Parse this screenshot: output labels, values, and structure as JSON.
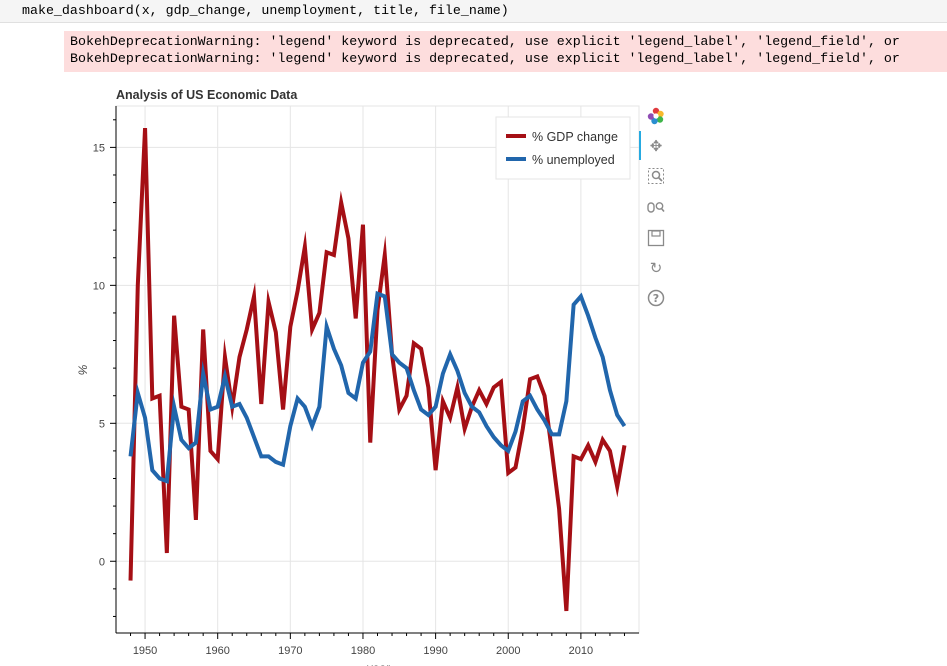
{
  "code": {
    "line": "make_dashboard(x, gdp_change, unemployment, title, file_name)"
  },
  "warnings": [
    "BokehDeprecationWarning: 'legend' keyword is deprecated, use explicit 'legend_label', 'legend_field', or",
    "BokehDeprecationWarning: 'legend' keyword is deprecated, use explicit 'legend_label', 'legend_field', or"
  ],
  "toolbar": {
    "items": [
      "bokeh-logo-icon",
      "pan-icon",
      "box-zoom-icon",
      "wheel-zoom-icon",
      "save-icon",
      "reset-icon",
      "help-icon"
    ]
  },
  "chart_data": {
    "type": "line",
    "title": "Analysis of US Economic Data",
    "xlabel": "year",
    "ylabel": "%",
    "xlim": [
      1946,
      2018
    ],
    "ylim": [
      -2.6,
      16.5
    ],
    "xticks": [
      1950,
      1960,
      1970,
      1980,
      1990,
      2000,
      2010
    ],
    "yticks": [
      0,
      5,
      10,
      15
    ],
    "grid": true,
    "legend_position": "top-right",
    "x": [
      1948,
      1949,
      1950,
      1951,
      1952,
      1953,
      1954,
      1955,
      1956,
      1957,
      1958,
      1959,
      1960,
      1961,
      1962,
      1963,
      1964,
      1965,
      1966,
      1967,
      1968,
      1969,
      1970,
      1971,
      1972,
      1973,
      1974,
      1975,
      1976,
      1977,
      1978,
      1979,
      1980,
      1981,
      1982,
      1983,
      1984,
      1985,
      1986,
      1987,
      1988,
      1989,
      1990,
      1991,
      1992,
      1993,
      1994,
      1995,
      1996,
      1997,
      1998,
      1999,
      2000,
      2001,
      2002,
      2003,
      2004,
      2005,
      2006,
      2007,
      2008,
      2009,
      2010,
      2011,
      2012,
      2013,
      2014,
      2015,
      2016
    ],
    "series": [
      {
        "name": "% GDP change",
        "color": "#a50f15",
        "values": [
          -0.7,
          10.0,
          15.7,
          5.9,
          6.0,
          0.3,
          8.9,
          5.6,
          5.5,
          1.5,
          8.4,
          4.0,
          3.7,
          7.4,
          5.6,
          7.4,
          8.4,
          9.6,
          5.7,
          9.4,
          8.3,
          5.5,
          8.5,
          9.8,
          11.4,
          8.4,
          9.0,
          11.2,
          11.1,
          13.0,
          11.7,
          8.8,
          12.2,
          4.3,
          9.1,
          11.1,
          7.5,
          5.5,
          6.0,
          7.9,
          7.7,
          6.3,
          3.3,
          5.8,
          5.2,
          6.3,
          4.8,
          5.6,
          6.2,
          5.7,
          6.3,
          6.5,
          3.2,
          3.4,
          4.8,
          6.6,
          6.7,
          6.0,
          4.0,
          1.9,
          -1.8,
          3.8,
          3.7,
          4.2,
          3.6,
          4.4,
          4.0,
          2.7,
          4.2
        ]
      },
      {
        "name": "% unemployed",
        "color": "#2166ac",
        "values": [
          3.8,
          6.1,
          5.2,
          3.3,
          3.0,
          2.9,
          5.6,
          4.4,
          4.1,
          4.3,
          6.8,
          5.5,
          5.6,
          6.7,
          5.6,
          5.7,
          5.2,
          4.5,
          3.8,
          3.8,
          3.6,
          3.5,
          4.9,
          5.9,
          5.6,
          4.9,
          5.6,
          8.5,
          7.7,
          7.1,
          6.1,
          5.9,
          7.2,
          7.6,
          9.7,
          9.6,
          7.5,
          7.2,
          7.0,
          6.2,
          5.5,
          5.3,
          5.6,
          6.8,
          7.5,
          6.9,
          6.1,
          5.6,
          5.4,
          4.9,
          4.5,
          4.2,
          4.0,
          4.7,
          5.8,
          6.0,
          5.5,
          5.1,
          4.6,
          4.6,
          5.8,
          9.3,
          9.6,
          8.9,
          8.1,
          7.4,
          6.2,
          5.3,
          4.9
        ]
      }
    ]
  }
}
